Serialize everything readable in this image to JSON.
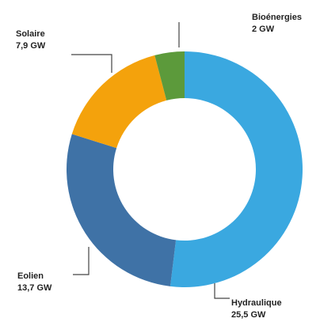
{
  "chart_data": {
    "type": "donut",
    "categories": [
      "Hydraulique",
      "Eolien",
      "Solaire",
      "Bioénergies"
    ],
    "values": [
      25.5,
      13.7,
      7.9,
      2
    ],
    "value_labels": [
      "25,5 GW",
      "13,7 GW",
      "7,9 GW",
      "2 GW"
    ],
    "colors": [
      "#3aa8e0",
      "#3f72a6",
      "#f4a20c",
      "#5c9a3b"
    ]
  }
}
